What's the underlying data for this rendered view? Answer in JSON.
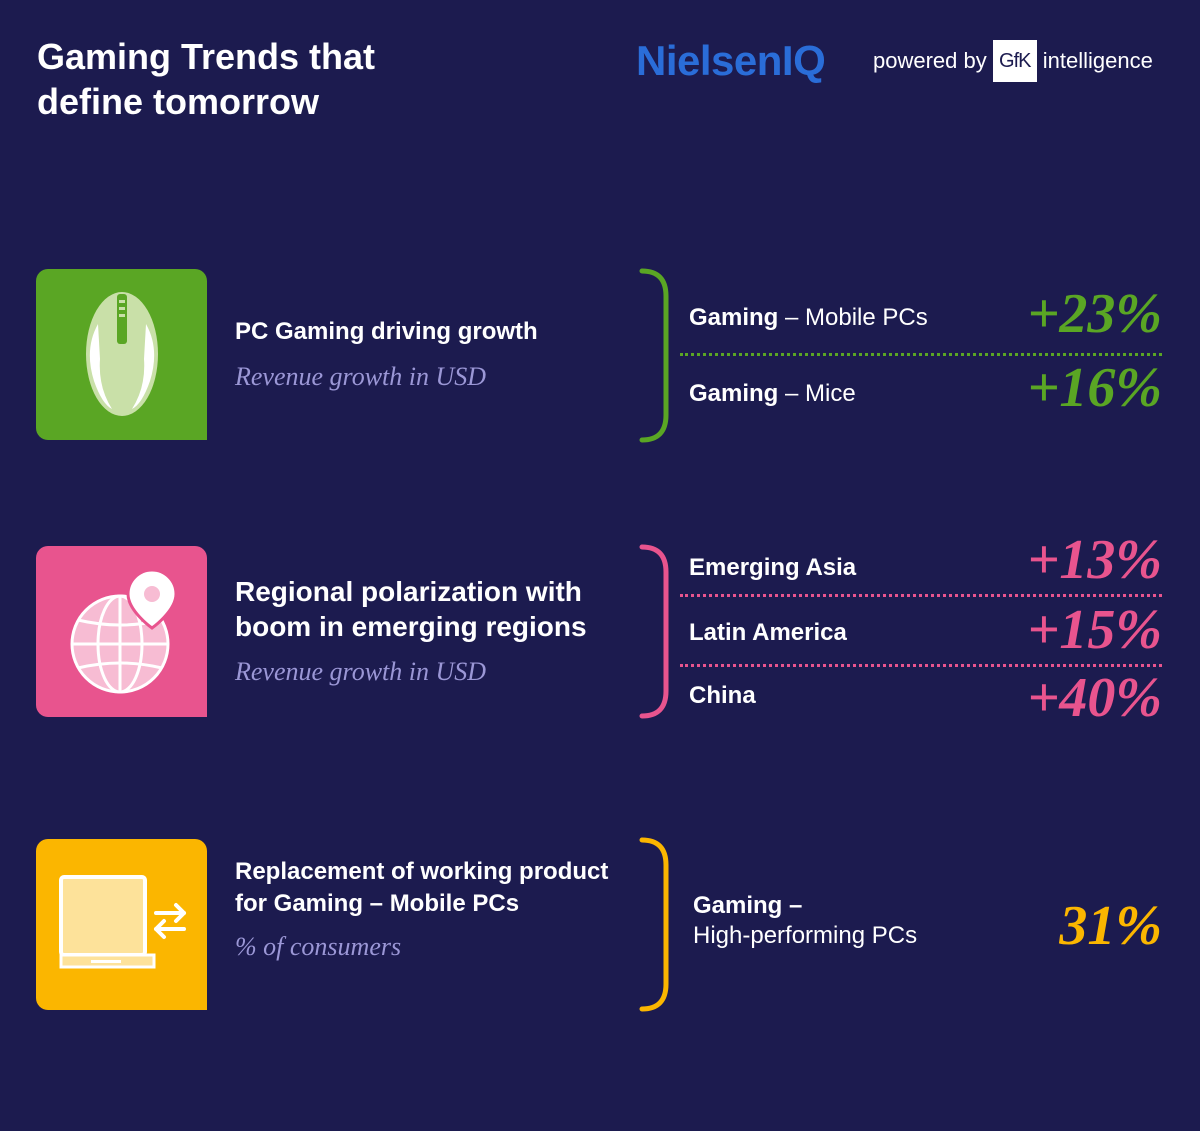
{
  "header": {
    "title_line1": "Gaming Trends that",
    "title_line2": "define tomorrow",
    "brand": "NielsenIQ",
    "powered_by": "powered by",
    "gfk": "GfK",
    "intelligence": "intelligence"
  },
  "colors": {
    "background": "#1c1b4f",
    "green": "#5aa624",
    "pink": "#e8548e",
    "yellow": "#fbb600",
    "brand_blue": "#2a6dd8"
  },
  "sections": [
    {
      "icon": "gaming-mouse-icon",
      "heading_line1": "PC Gaming driving growth",
      "subtitle": "Revenue growth in USD",
      "metrics": [
        {
          "label_bold": "Gaming",
          "label_rest": " – Mobile PCs",
          "value": "+23%"
        },
        {
          "label_bold": "Gaming",
          "label_rest": " – Mice",
          "value": "+16%"
        }
      ]
    },
    {
      "icon": "globe-location-pin-icon",
      "heading_line1": "Regional polarization with",
      "heading_line2": "boom in emerging regions",
      "subtitle": "Revenue growth in USD",
      "metrics": [
        {
          "label_bold": "Emerging Asia",
          "value": "+13%"
        },
        {
          "label_bold": "Latin America",
          "value": "+15%"
        },
        {
          "label_bold": "China",
          "value": "+40%"
        }
      ]
    },
    {
      "icon": "laptop-swap-icon",
      "heading_line1": "Replacement of working product",
      "heading_line2": "for Gaming – Mobile PCs",
      "subtitle": "% of consumers",
      "metrics": [
        {
          "label_bold": "Gaming –",
          "label_line2": "High-performing PCs",
          "value": "31%"
        }
      ]
    }
  ]
}
